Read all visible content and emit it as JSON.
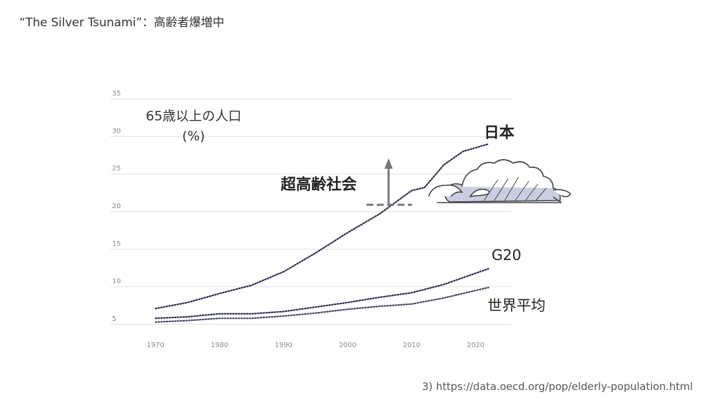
{
  "slide": {
    "title": "“The Silver Tsunami”：高齢者爆増中",
    "source": "3) https://data.oecd.org/pop/elderly-population.html"
  },
  "chart_data": {
    "type": "line",
    "title": "",
    "ylabel": "65歳以上の人口",
    "ylabel_unit": "(%)",
    "xlabel": "",
    "ylim": [
      5,
      35
    ],
    "xlim": [
      1964,
      2030
    ],
    "yticks": [
      "5",
      "10",
      "15",
      "20",
      "25",
      "30",
      "35"
    ],
    "xticks": [
      "1970",
      "1980",
      "1990",
      "2000",
      "2010",
      "2020"
    ],
    "grid": true,
    "annotation": {
      "label": "超高齢社会",
      "threshold": 21
    },
    "series": [
      {
        "name": "日本",
        "color": "#2a2a55",
        "x": [
          1970,
          1975,
          1980,
          1985,
          1990,
          1995,
          2000,
          2005,
          2010,
          2012,
          2015,
          2018,
          2022
        ],
        "values": [
          7.1,
          7.9,
          9.1,
          10.2,
          12.0,
          14.5,
          17.2,
          19.7,
          22.8,
          23.2,
          26.2,
          28.0,
          29.0
        ]
      },
      {
        "name": "G20",
        "color": "#2a2a55",
        "x": [
          1970,
          1975,
          1980,
          1985,
          1990,
          1995,
          2000,
          2005,
          2010,
          2015,
          2022
        ],
        "values": [
          5.8,
          6.0,
          6.4,
          6.4,
          6.7,
          7.3,
          7.9,
          8.6,
          9.2,
          10.3,
          12.4
        ]
      },
      {
        "name": "世界平均",
        "color": "#44446a",
        "x": [
          1970,
          1975,
          1980,
          1985,
          1990,
          1995,
          2000,
          2005,
          2010,
          2015,
          2022
        ],
        "values": [
          5.3,
          5.5,
          5.8,
          5.8,
          6.1,
          6.5,
          7.0,
          7.4,
          7.7,
          8.5,
          9.9
        ]
      }
    ]
  }
}
